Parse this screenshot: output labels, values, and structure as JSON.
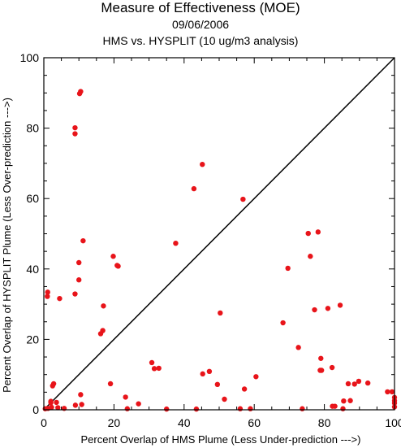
{
  "chart_data": {
    "type": "scatter",
    "title": "Measure of Effectiveness (MOE)",
    "subtitle_date": "09/06/2006",
    "subtitle": "HMS vs. HYSPLIT  (10 ug/m3 analysis)",
    "xlabel": "Percent Overlap of HMS Plume (Less Under-prediction --->)",
    "ylabel": "Percent Overlap of HYSPLIT Plume (Less Over-prediction --->)",
    "xlim": [
      0,
      100
    ],
    "ylim": [
      0,
      100
    ],
    "xticks": [
      0,
      20,
      40,
      60,
      80,
      100
    ],
    "yticks": [
      0,
      20,
      40,
      60,
      80,
      100
    ],
    "grid": false,
    "reference_line": "diagonal y = x",
    "marker_color": "#e8141a",
    "series": [
      {
        "points": [
          [
            10.5,
            90.4
          ],
          [
            10.2,
            89.8
          ],
          [
            8.9,
            80.1
          ],
          [
            8.9,
            78.4
          ],
          [
            45.2,
            69.7
          ],
          [
            42.8,
            62.8
          ],
          [
            56.8,
            59.8
          ],
          [
            75.4,
            50.1
          ],
          [
            78.2,
            50.5
          ],
          [
            11.2,
            48.0
          ],
          [
            37.6,
            47.3
          ],
          [
            19.8,
            43.6
          ],
          [
            76.0,
            43.6
          ],
          [
            10.0,
            41.8
          ],
          [
            20.9,
            41.0
          ],
          [
            21.2,
            40.8
          ],
          [
            69.6,
            40.2
          ],
          [
            10.0,
            36.9
          ],
          [
            8.9,
            32.9
          ],
          [
            1.1,
            33.4
          ],
          [
            1.0,
            32.2
          ],
          [
            4.5,
            31.6
          ],
          [
            17.0,
            29.5
          ],
          [
            84.5,
            29.7
          ],
          [
            81.0,
            28.8
          ],
          [
            77.2,
            28.4
          ],
          [
            50.3,
            27.5
          ],
          [
            68.2,
            24.7
          ],
          [
            16.8,
            22.5
          ],
          [
            16.2,
            21.6
          ],
          [
            72.6,
            17.7
          ],
          [
            79.0,
            14.6
          ],
          [
            30.8,
            13.4
          ],
          [
            31.5,
            11.7
          ],
          [
            32.8,
            11.8
          ],
          [
            47.2,
            10.9
          ],
          [
            45.3,
            10.2
          ],
          [
            78.8,
            11.2
          ],
          [
            79.2,
            11.2
          ],
          [
            82.2,
            12.0
          ],
          [
            60.5,
            9.4
          ],
          [
            57.2,
            5.9
          ],
          [
            49.5,
            7.2
          ],
          [
            19.0,
            7.4
          ],
          [
            2.5,
            6.8
          ],
          [
            2.8,
            7.4
          ],
          [
            10.5,
            4.3
          ],
          [
            23.3,
            3.6
          ],
          [
            27.0,
            1.7
          ],
          [
            51.5,
            3.0
          ],
          [
            2.0,
            2.4
          ],
          [
            2.0,
            2.0
          ],
          [
            3.6,
            2.1
          ],
          [
            10.8,
            1.5
          ],
          [
            9.0,
            1.3
          ],
          [
            0.4,
            0.3
          ],
          [
            1.2,
            0.4
          ],
          [
            2.2,
            0.7
          ],
          [
            4.0,
            0.6
          ],
          [
            5.8,
            0.4
          ],
          [
            23.8,
            0.3
          ],
          [
            35.0,
            0.2
          ],
          [
            43.5,
            0.2
          ],
          [
            56.0,
            0.3
          ],
          [
            58.9,
            0.3
          ],
          [
            73.7,
            0.3
          ],
          [
            82.3,
            1.0
          ],
          [
            83.0,
            1.0
          ],
          [
            85.5,
            2.5
          ],
          [
            86.8,
            7.4
          ],
          [
            87.4,
            2.6
          ],
          [
            88.6,
            7.3
          ],
          [
            89.8,
            8.1
          ],
          [
            92.4,
            7.6
          ],
          [
            85.3,
            0.3
          ],
          [
            98.0,
            5.1
          ],
          [
            99.3,
            5.1
          ],
          [
            100.0,
            3.5
          ],
          [
            100.0,
            2.6
          ],
          [
            100.0,
            1.9
          ],
          [
            100.0,
            0.8
          ]
        ]
      }
    ]
  }
}
